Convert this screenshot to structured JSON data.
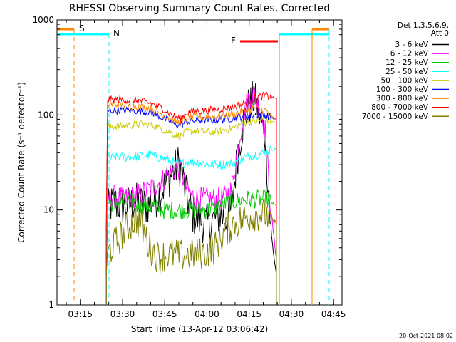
{
  "chart_data": {
    "type": "line",
    "title": "RHESSI Observing Summary Count Rates, Corrected",
    "xlabel": "Start Time (13-Apr-12 03:06:42)",
    "ylabel": "Corrected Count Rate (s⁻¹ detector⁻¹)",
    "ylim": [
      1,
      1000
    ],
    "yscale": "log",
    "xlim_minutes": [
      0,
      101.3
    ],
    "y_ticks": [
      "1",
      "10",
      "100",
      "1000"
    ],
    "x_ticks": [
      {
        "label": "03:15",
        "minute": 8.3
      },
      {
        "label": "03:30",
        "minute": 23.3
      },
      {
        "label": "03:45",
        "minute": 38.3
      },
      {
        "label": "04:00",
        "minute": 53.3
      },
      {
        "label": "04:15",
        "minute": 68.3
      },
      {
        "label": "04:30",
        "minute": 83.3
      },
      {
        "label": "04:45",
        "minute": 98.3
      }
    ],
    "legend_header": [
      "Det 1,3,5,6,9,",
      "Att 0"
    ],
    "legend_placement": "right",
    "series": [
      {
        "name": "3 - 6 keV",
        "color": "#000000",
        "points": [
          [
            17.5,
            2
          ],
          [
            18,
            10
          ],
          [
            20,
            12
          ],
          [
            24,
            11
          ],
          [
            28,
            12
          ],
          [
            32,
            11
          ],
          [
            36,
            14
          ],
          [
            40,
            22
          ],
          [
            43,
            30
          ],
          [
            44,
            28
          ],
          [
            46,
            14
          ],
          [
            48,
            9
          ],
          [
            50,
            8
          ],
          [
            53,
            7
          ],
          [
            56,
            8
          ],
          [
            58,
            9
          ],
          [
            60,
            8
          ],
          [
            62,
            10
          ],
          [
            64,
            35
          ],
          [
            66,
            80
          ],
          [
            68,
            120
          ],
          [
            70,
            150
          ],
          [
            72,
            100
          ],
          [
            74,
            60
          ],
          [
            76,
            6
          ],
          [
            78,
            2
          ]
        ]
      },
      {
        "name": "6 - 12 keV",
        "color": "#ff00ff",
        "points": [
          [
            17.5,
            2
          ],
          [
            18,
            13
          ],
          [
            20,
            14
          ],
          [
            24,
            13
          ],
          [
            28,
            14
          ],
          [
            32,
            16
          ],
          [
            36,
            19
          ],
          [
            40,
            24
          ],
          [
            43,
            28
          ],
          [
            44,
            26
          ],
          [
            46,
            17
          ],
          [
            48,
            14
          ],
          [
            50,
            13
          ],
          [
            53,
            13
          ],
          [
            56,
            13
          ],
          [
            58,
            13
          ],
          [
            60,
            14
          ],
          [
            62,
            16
          ],
          [
            64,
            40
          ],
          [
            66,
            90
          ],
          [
            68,
            150
          ],
          [
            70,
            170
          ],
          [
            72,
            120
          ],
          [
            74,
            70
          ],
          [
            76,
            10
          ],
          [
            78,
            3
          ]
        ]
      },
      {
        "name": "12 - 25 keV",
        "color": "#00cc00",
        "points": [
          [
            17.5,
            2
          ],
          [
            18,
            12
          ],
          [
            22,
            12
          ],
          [
            26,
            12
          ],
          [
            30,
            11
          ],
          [
            34,
            11
          ],
          [
            38,
            10
          ],
          [
            42,
            10
          ],
          [
            46,
            10
          ],
          [
            50,
            10
          ],
          [
            54,
            10
          ],
          [
            58,
            11
          ],
          [
            62,
            12
          ],
          [
            66,
            13
          ],
          [
            70,
            13
          ],
          [
            74,
            13
          ],
          [
            76,
            12
          ],
          [
            78,
            11
          ]
        ]
      },
      {
        "name": "25 - 50 keV",
        "color": "#00ffff",
        "points": [
          [
            17.5,
            3
          ],
          [
            18,
            35
          ],
          [
            22,
            36
          ],
          [
            26,
            36
          ],
          [
            30,
            37
          ],
          [
            33,
            38
          ],
          [
            36,
            36
          ],
          [
            40,
            33
          ],
          [
            43,
            30
          ],
          [
            46,
            32
          ],
          [
            50,
            32
          ],
          [
            54,
            30
          ],
          [
            58,
            30
          ],
          [
            62,
            31
          ],
          [
            66,
            35
          ],
          [
            70,
            38
          ],
          [
            74,
            40
          ],
          [
            76,
            43
          ],
          [
            78,
            44
          ]
        ]
      },
      {
        "name": "50 - 100 keV",
        "color": "#cccc00",
        "points": [
          [
            17.5,
            5
          ],
          [
            18,
            75
          ],
          [
            22,
            77
          ],
          [
            26,
            78
          ],
          [
            30,
            80
          ],
          [
            34,
            78
          ],
          [
            38,
            70
          ],
          [
            42,
            62
          ],
          [
            44,
            60
          ],
          [
            46,
            66
          ],
          [
            50,
            68
          ],
          [
            54,
            66
          ],
          [
            58,
            68
          ],
          [
            62,
            72
          ],
          [
            66,
            82
          ],
          [
            70,
            85
          ],
          [
            74,
            88
          ],
          [
            76,
            86
          ],
          [
            78,
            82
          ]
        ]
      },
      {
        "name": "100 - 300 keV",
        "color": "#0000ff",
        "points": [
          [
            17.5,
            5
          ],
          [
            18,
            110
          ],
          [
            22,
            112
          ],
          [
            26,
            112
          ],
          [
            30,
            110
          ],
          [
            34,
            105
          ],
          [
            38,
            92
          ],
          [
            42,
            80
          ],
          [
            44,
            78
          ],
          [
            46,
            85
          ],
          [
            50,
            88
          ],
          [
            54,
            88
          ],
          [
            58,
            90
          ],
          [
            62,
            92
          ],
          [
            66,
            96
          ],
          [
            70,
            100
          ],
          [
            74,
            100
          ],
          [
            76,
            95
          ],
          [
            78,
            90
          ]
        ]
      },
      {
        "name": "300 - 800 keV",
        "color": "#ff8800",
        "points": [
          [
            17.5,
            5
          ],
          [
            18,
            130
          ],
          [
            22,
            128
          ],
          [
            26,
            125
          ],
          [
            30,
            122
          ],
          [
            34,
            115
          ],
          [
            38,
            100
          ],
          [
            42,
            85
          ],
          [
            44,
            82
          ],
          [
            46,
            92
          ],
          [
            50,
            96
          ],
          [
            54,
            95
          ],
          [
            58,
            98
          ],
          [
            62,
            102
          ],
          [
            66,
            108
          ],
          [
            70,
            118
          ],
          [
            74,
            112
          ],
          [
            76,
            98
          ],
          [
            78,
            88
          ]
        ]
      },
      {
        "name": "800 - 7000 keV",
        "color": "#ff0000",
        "points": [
          [
            17.5,
            6
          ],
          [
            18,
            145
          ],
          [
            22,
            145
          ],
          [
            26,
            143
          ],
          [
            30,
            140
          ],
          [
            34,
            130
          ],
          [
            38,
            115
          ],
          [
            42,
            95
          ],
          [
            44,
            92
          ],
          [
            46,
            105
          ],
          [
            50,
            110
          ],
          [
            54,
            112
          ],
          [
            58,
            115
          ],
          [
            62,
            120
          ],
          [
            66,
            130
          ],
          [
            70,
            150
          ],
          [
            74,
            160
          ],
          [
            76,
            155
          ],
          [
            78,
            150
          ]
        ]
      },
      {
        "name": "7000 - 15000 keV",
        "color": "#808000",
        "points": [
          [
            17.5,
            2
          ],
          [
            18,
            3.5
          ],
          [
            22,
            5
          ],
          [
            26,
            7
          ],
          [
            28,
            8
          ],
          [
            30,
            7
          ],
          [
            33,
            4
          ],
          [
            36,
            3.2
          ],
          [
            40,
            3.4
          ],
          [
            44,
            3.3
          ],
          [
            48,
            3.4
          ],
          [
            52,
            3.5
          ],
          [
            56,
            4
          ],
          [
            58,
            5
          ],
          [
            60,
            6
          ],
          [
            62,
            7
          ],
          [
            66,
            8
          ],
          [
            70,
            9
          ],
          [
            74,
            9
          ],
          [
            76,
            8
          ],
          [
            78,
            7
          ]
        ]
      }
    ],
    "annotations": [
      {
        "text": "S",
        "color": "#ff8800"
      },
      {
        "text": "N",
        "color": "#00ffff"
      },
      {
        "text": "F",
        "color": "#ff0000"
      }
    ],
    "timestamp": "20-Oct-2021 08:02"
  }
}
